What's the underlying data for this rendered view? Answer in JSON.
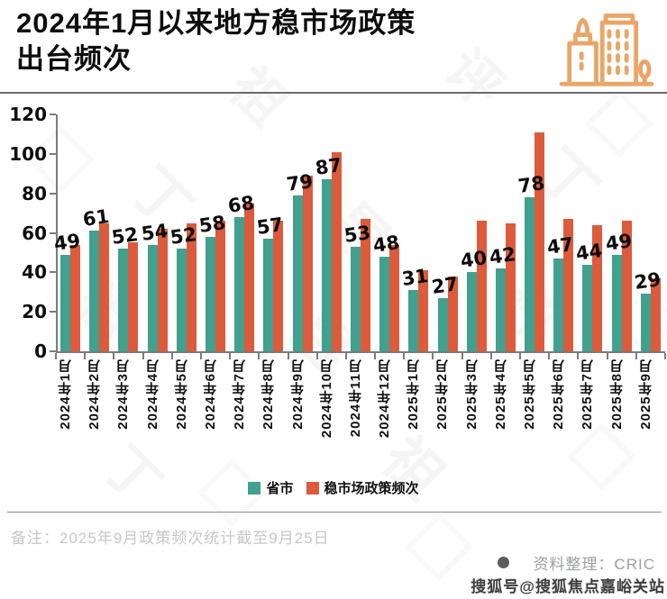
{
  "title": {
    "line1": "2024年1月以来地方稳市场政策",
    "line2": "出台频次"
  },
  "chart_data": {
    "type": "bar",
    "categories": [
      "2024年1月",
      "2024年2月",
      "2024年3月",
      "2024年4月",
      "2024年5月",
      "2024年6月",
      "2024年7月",
      "2024年8月",
      "2024年9月",
      "2024年10月",
      "2024年11月",
      "2024年12月",
      "2025年1月",
      "2025年2月",
      "2025年3月",
      "2025年4月",
      "2025年5月",
      "2025年6月",
      "2025年7月",
      "2025年8月",
      "2025年9月"
    ],
    "series": [
      {
        "name": "省市",
        "color": "#41A08E",
        "values": [
          49,
          61,
          52,
          54,
          52,
          58,
          68,
          57,
          79,
          87,
          53,
          48,
          31,
          27,
          40,
          42,
          78,
          47,
          44,
          49,
          29
        ],
        "show_value_labels": true
      },
      {
        "name": "稳市场政策频次",
        "color": "#DC5B3C",
        "values": [
          54,
          65,
          55,
          62,
          65,
          66,
          75,
          66,
          89,
          101,
          67,
          54,
          41,
          38,
          66,
          65,
          111,
          67,
          64,
          66,
          37
        ],
        "show_value_labels": false
      }
    ],
    "ylim": [
      0,
      120
    ],
    "yticks": [
      0,
      20,
      40,
      60,
      80,
      100,
      120
    ],
    "grid": false,
    "legend_position": "bottom"
  },
  "footer": {
    "note": "备注：2025年9月政策频次统计截至9月25日",
    "source": "资料整理：CRIC",
    "watermark": "搜狐号@搜狐焦点嘉峪关站"
  },
  "decor": {
    "hero_icon": "buildings-icon",
    "hero_icon_color": "#E9A668",
    "watermark_glyphs": [
      "丁",
      "祖",
      "昱",
      "评",
      "丁",
      "祖",
      "昱",
      "评",
      "丁",
      "祖"
    ]
  }
}
